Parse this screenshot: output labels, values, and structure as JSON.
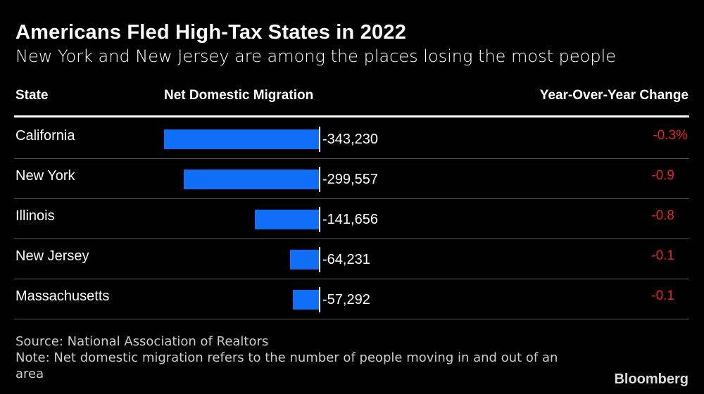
{
  "chart_data": {
    "type": "bar",
    "orientation": "horizontal",
    "title": "Americans Fled High-Tax States in 2022",
    "subtitle": "New York and New Jersey are among the places losing the most people",
    "columns": [
      "State",
      "Net Domestic Migration",
      "Year-Over-Year Change"
    ],
    "categories": [
      "California",
      "New York",
      "Illinois",
      "New Jersey",
      "Massachusetts"
    ],
    "values": [
      -343230,
      -299557,
      -141656,
      -64231,
      -57292
    ],
    "value_labels": [
      "-343,230",
      "-299,557",
      "-141,656",
      "-64,231",
      "-57,292"
    ],
    "yoy_change": [
      "-0.3%",
      "-0.9",
      "-0.8",
      "-0.1",
      "-0.1"
    ],
    "bar_color": "#0f6ff9",
    "change_color": "#e3261b"
  },
  "footer": {
    "source": "Source: National Association of Realtors",
    "note": "Note: Net domestic migration refers to the number of people moving in and out of an area",
    "logo": "Bloomberg"
  }
}
